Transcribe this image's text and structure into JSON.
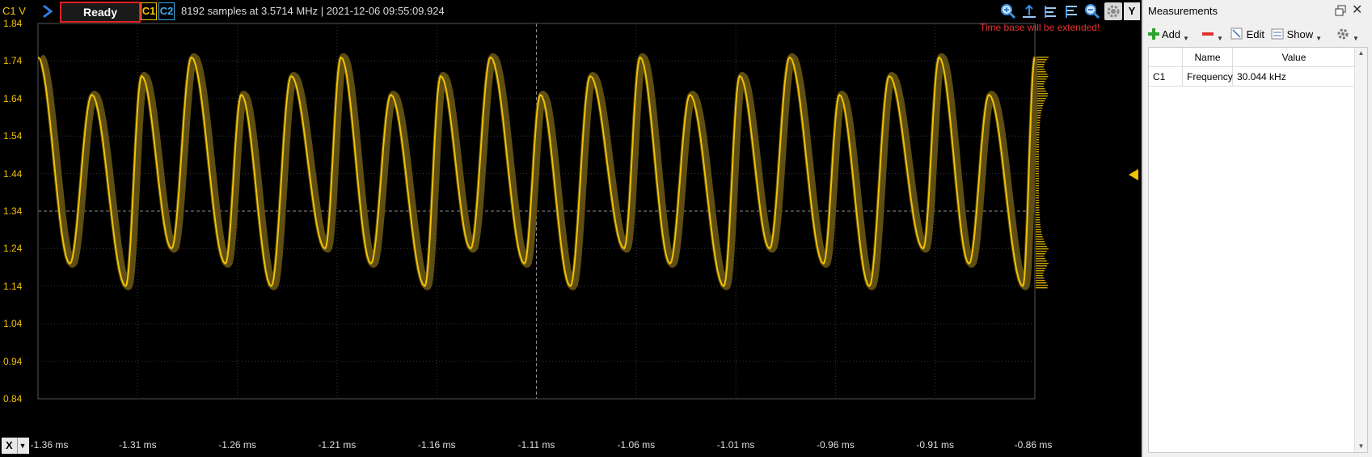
{
  "scope": {
    "channel_label": "C1 V",
    "status": "Ready",
    "c1": "C1",
    "c2": "C2",
    "info": "8192 samples at 3.5714 MHz | 2021-12-06 09:55:09.924",
    "warning": "Time base will be extended!",
    "y_button": "Y",
    "x_button": "X",
    "toolbar_icons": [
      "zoom-in-icon",
      "zoom-fit-icon",
      "cursor-icon",
      "cursor-icon",
      "zoom-out-icon",
      "gear-icon"
    ],
    "colors": {
      "c1": "#f2c200",
      "c2": "#3fa9e8",
      "status_border": "#e02020",
      "warning": "#e53030"
    }
  },
  "chart_data": {
    "type": "line",
    "ylabel": "C1 V",
    "xlabel": "",
    "y_ticks": [
      "1.84",
      "1.74",
      "1.64",
      "1.54",
      "1.44",
      "1.34",
      "1.24",
      "1.14",
      "1.04",
      "0.94",
      "0.84"
    ],
    "x_ticks": [
      "-1.36 ms",
      "-1.31 ms",
      "-1.26 ms",
      "-1.21 ms",
      "-1.16 ms",
      "-1.11 ms",
      "-1.06 ms",
      "-1.01 ms",
      "-0.96 ms",
      "-0.91 ms",
      "-0.86 ms"
    ],
    "ylim": [
      0.84,
      1.84
    ],
    "xlim_ms": [
      -1.36,
      -0.86
    ],
    "grid": true,
    "series": [
      {
        "color": "#f2c200",
        "x_ms": [
          -1.36,
          -1.344,
          -1.333,
          -1.316,
          -1.308,
          -1.293,
          -1.283,
          -1.266,
          -1.258,
          -1.243,
          -1.233,
          -1.216,
          -1.208,
          -1.193,
          -1.183,
          -1.166,
          -1.158,
          -1.143,
          -1.133,
          -1.116,
          -1.108,
          -1.093,
          -1.083,
          -1.066,
          -1.058,
          -1.043,
          -1.033,
          -1.016,
          -1.008,
          -0.993,
          -0.983,
          -0.966,
          -0.958,
          -0.943,
          -0.933,
          -0.916,
          -0.908,
          -0.893,
          -0.883,
          -0.866,
          -0.86
        ],
        "y": [
          1.75,
          1.2,
          1.65,
          1.14,
          1.7,
          1.24,
          1.75,
          1.2,
          1.65,
          1.14,
          1.7,
          1.24,
          1.75,
          1.2,
          1.65,
          1.14,
          1.7,
          1.24,
          1.75,
          1.2,
          1.65,
          1.14,
          1.7,
          1.24,
          1.75,
          1.2,
          1.65,
          1.14,
          1.7,
          1.24,
          1.75,
          1.2,
          1.65,
          1.14,
          1.7,
          1.24,
          1.75,
          1.2,
          1.65,
          1.14,
          1.75
        ]
      }
    ]
  },
  "panel": {
    "title": "Measurements",
    "toolbar": {
      "add": "Add",
      "edit": "Edit",
      "show": "Show"
    },
    "table": {
      "columns": [
        "",
        "Name",
        "Value"
      ],
      "rows": [
        {
          "channel": "C1",
          "name": "Frequency",
          "value": "30.044 kHz"
        }
      ]
    }
  }
}
